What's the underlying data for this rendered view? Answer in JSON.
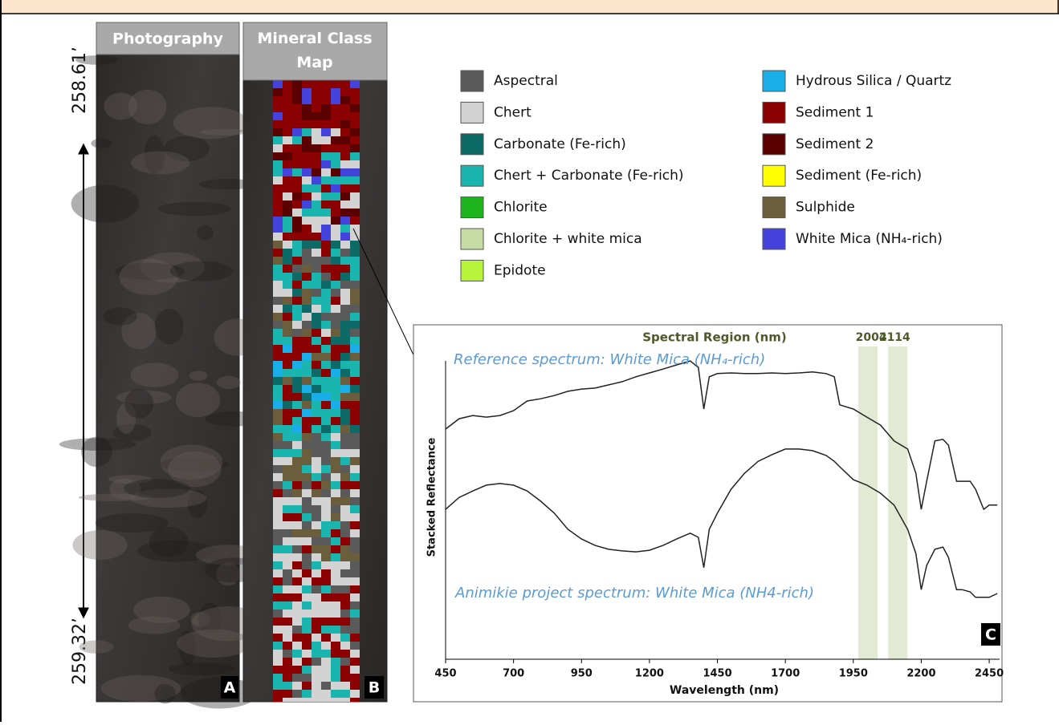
{
  "depth": {
    "top": "258.61’",
    "bottom": "259.32’"
  },
  "panels": {
    "a": {
      "title": "Photography",
      "label": "A"
    },
    "b": {
      "title": "Mineral Class Map",
      "label": "B"
    }
  },
  "legend": [
    {
      "label": "Aspectral",
      "color": "#5a5a5a"
    },
    {
      "label": "Chert",
      "color": "#d3d3d3"
    },
    {
      "label": "Carbonate (Fe-rich)",
      "color": "#0e6a66"
    },
    {
      "label": "Chert + Carbonate (Fe-rich)",
      "color": "#1bb5b0"
    },
    {
      "label": "Chlorite",
      "color": "#1db31d"
    },
    {
      "label": "Chlorite + white mica",
      "color": "#c6dca4"
    },
    {
      "label": "Epidote",
      "color": "#b7f53b"
    },
    {
      "label": "Hydrous Silica / Quartz",
      "color": "#1aaee8"
    },
    {
      "label": "Sediment 1",
      "color": "#8b0000"
    },
    {
      "label": "Sediment 2",
      "color": "#5a0000"
    },
    {
      "label": "Sediment (Fe-rich)",
      "color": "#ffff00"
    },
    {
      "label": "Sulphide",
      "color": "#6b5e3c"
    },
    {
      "label": "White Mica (NH₄-rich)",
      "color": "#4444dd"
    }
  ],
  "chart_data": {
    "type": "line",
    "panel_label": "C",
    "highlight_title": "Spectral Region (nm)",
    "highlights": [
      2004,
      2114
    ],
    "highlight_color": "#e3ead3",
    "x_label": "Wavelength (nm)",
    "y_label": "Stacked Reflectance",
    "label_color": "#5b9bd5",
    "xlim": [
      450,
      2500
    ],
    "ylim": [
      0,
      100
    ],
    "xticks": [
      450,
      700,
      950,
      1200,
      1450,
      1700,
      1950,
      2200,
      2450
    ],
    "x": [
      450,
      500,
      550,
      600,
      650,
      700,
      750,
      800,
      850,
      900,
      950,
      1000,
      1050,
      1100,
      1150,
      1200,
      1250,
      1300,
      1350,
      1380,
      1400,
      1420,
      1450,
      1500,
      1550,
      1600,
      1650,
      1700,
      1750,
      1800,
      1850,
      1880,
      1900,
      1950,
      2000,
      2050,
      2100,
      2150,
      2180,
      2200,
      2220,
      2250,
      2280,
      2300,
      2330,
      2350,
      2380,
      2400,
      2430,
      2450,
      2480
    ],
    "series": [
      {
        "name": "Reference spectrum: White Mica (NH₄-rich)",
        "color": "#222222",
        "values": [
          71.4,
          74.6,
          75.6,
          75.1,
          75.6,
          77.1,
          80.1,
          80.8,
          81.8,
          83.1,
          83.8,
          84.1,
          85.1,
          86.1,
          87.6,
          88.8,
          90.0,
          91.3,
          92.5,
          90.5,
          77.6,
          87.6,
          88.6,
          88.8,
          88.6,
          88.6,
          88.8,
          88.6,
          88.8,
          89.1,
          88.6,
          87.6,
          78.9,
          77.6,
          75.1,
          72.6,
          67.7,
          65.2,
          57.7,
          46.5,
          55.2,
          67.7,
          68.2,
          66.4,
          55.2,
          55.2,
          55.2,
          52.7,
          46.5,
          47.8,
          47.8
        ]
      },
      {
        "name": "Animikie project spectrum: White Mica (NH4-rich)",
        "color": "#222222",
        "values": [
          46.5,
          50.2,
          52.2,
          54.0,
          54.5,
          54.0,
          52.2,
          49.0,
          45.3,
          40.3,
          37.3,
          35.3,
          34.1,
          33.6,
          33.3,
          33.8,
          35.3,
          37.3,
          39.1,
          37.8,
          28.4,
          40.3,
          45.3,
          52.7,
          57.7,
          61.4,
          63.4,
          65.2,
          65.2,
          64.7,
          63.2,
          61.4,
          59.7,
          55.7,
          54.0,
          51.5,
          47.8,
          40.3,
          32.8,
          21.6,
          29.1,
          34.1,
          34.8,
          31.6,
          21.6,
          21.6,
          20.9,
          19.2,
          19.2,
          19.2,
          20.4
        ]
      }
    ]
  }
}
